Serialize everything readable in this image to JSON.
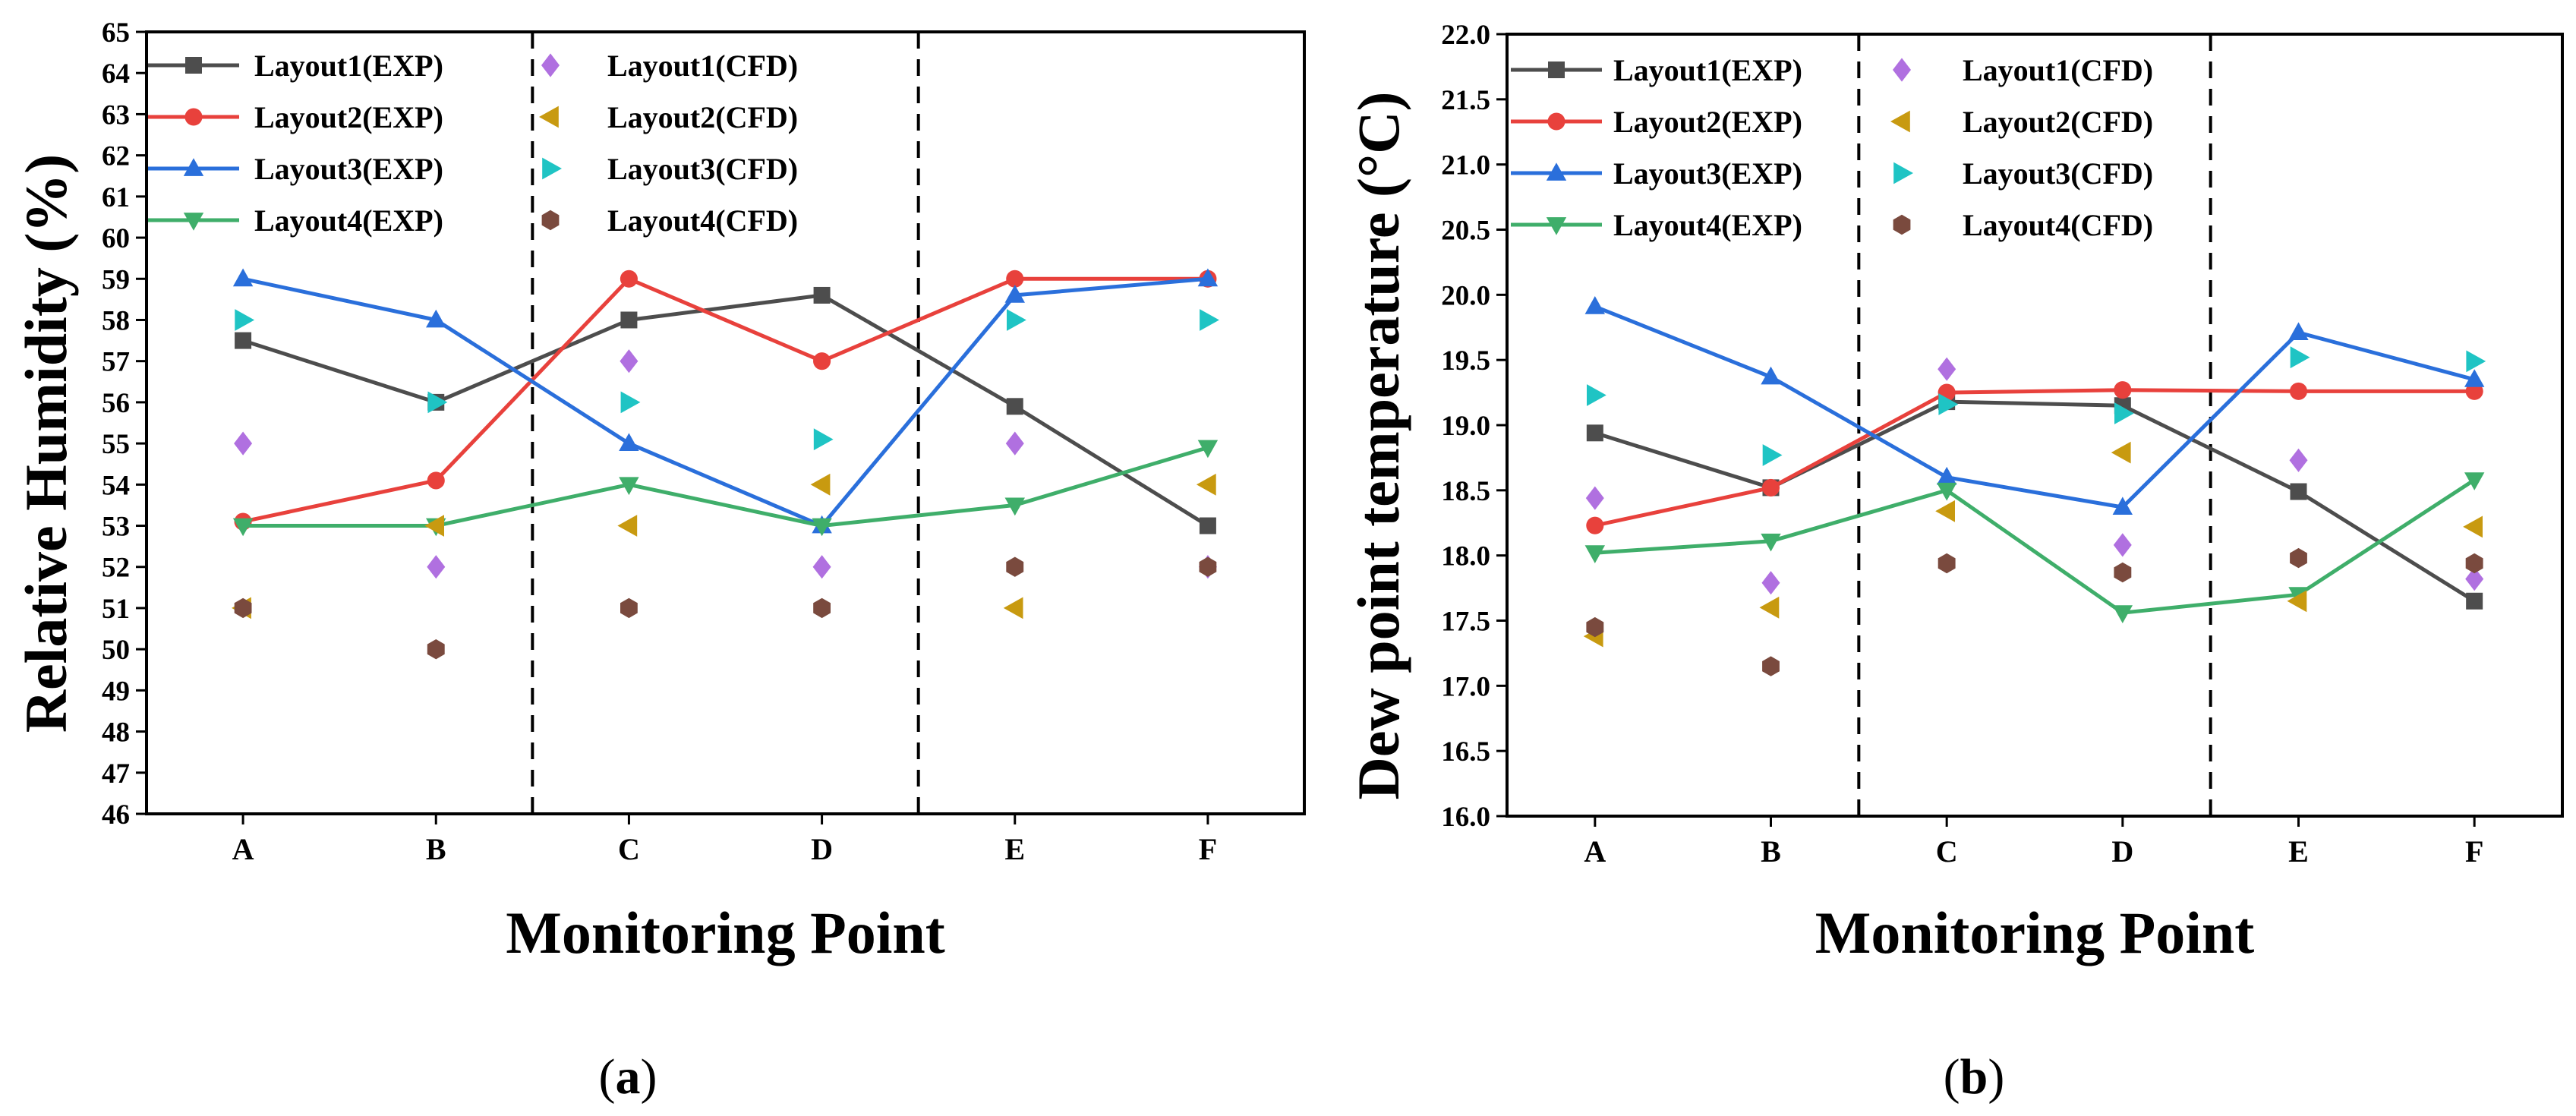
{
  "chart_data": [
    {
      "type": "line",
      "title": "",
      "xlabel": "Monitoring Point",
      "ylabel": "Relative Humidity (%)",
      "categories": [
        "A",
        "B",
        "C",
        "D",
        "E",
        "F"
      ],
      "ylim": [
        46,
        65
      ],
      "yticks": [
        46,
        47,
        48,
        49,
        50,
        51,
        52,
        53,
        54,
        55,
        56,
        57,
        58,
        59,
        60,
        61,
        62,
        63,
        64,
        65
      ],
      "caption": {
        "open": "(",
        "letter": "a",
        "close": ")"
      },
      "series": [
        {
          "name": "Layout1(EXP)",
          "kind": "line",
          "marker": "square",
          "color": "#4d4d4d",
          "values": [
            57.5,
            56.0,
            58.0,
            58.6,
            55.9,
            53.0
          ]
        },
        {
          "name": "Layout2(EXP)",
          "kind": "line",
          "marker": "circle",
          "color": "#e8413c",
          "values": [
            53.1,
            54.1,
            59.0,
            57.0,
            59.0,
            59.0
          ]
        },
        {
          "name": "Layout3(EXP)",
          "kind": "line",
          "marker": "triangle-up",
          "color": "#2a6fdb",
          "values": [
            59.0,
            58.0,
            55.0,
            53.0,
            58.6,
            59.0
          ]
        },
        {
          "name": "Layout4(EXP)",
          "kind": "line",
          "marker": "triangle-down",
          "color": "#3fae6a",
          "values": [
            53.0,
            53.0,
            54.0,
            53.0,
            53.5,
            54.9
          ]
        },
        {
          "name": "Layout1(CFD)",
          "kind": "scatter",
          "marker": "diamond",
          "color": "#b070e0",
          "values": [
            55.0,
            52.0,
            57.0,
            52.0,
            55.0,
            52.0
          ]
        },
        {
          "name": "Layout2(CFD)",
          "kind": "scatter",
          "marker": "triangle-left",
          "color": "#c89a10",
          "values": [
            51.0,
            53.0,
            53.0,
            54.0,
            51.0,
            54.0
          ]
        },
        {
          "name": "Layout3(CFD)",
          "kind": "scatter",
          "marker": "triangle-right",
          "color": "#1fc4c4",
          "values": [
            58.0,
            56.0,
            56.0,
            55.1,
            58.0,
            58.0
          ]
        },
        {
          "name": "Layout4(CFD)",
          "kind": "scatter",
          "marker": "hexagon",
          "color": "#7a4a3e",
          "values": [
            51.0,
            50.0,
            51.0,
            51.0,
            52.0,
            52.0
          ]
        }
      ],
      "dividers_after_categories": [
        "B",
        "D"
      ]
    },
    {
      "type": "line",
      "title": "",
      "xlabel": "Monitoring Point",
      "ylabel": "Dew point temperature (°C)",
      "categories": [
        "A",
        "B",
        "C",
        "D",
        "E",
        "F"
      ],
      "ylim": [
        16.0,
        22.0
      ],
      "yticks": [
        "16.0",
        "16.5",
        "17.0",
        "17.5",
        "18.0",
        "18.5",
        "19.0",
        "19.5",
        "20.0",
        "20.5",
        "21.0",
        "21.5",
        "22.0"
      ],
      "caption": {
        "open": "(",
        "letter": "b",
        "close": ")"
      },
      "series": [
        {
          "name": "Layout1(EXP)",
          "kind": "line",
          "marker": "square",
          "color": "#4d4d4d",
          "values": [
            18.94,
            18.52,
            19.18,
            19.15,
            18.49,
            17.65
          ]
        },
        {
          "name": "Layout2(EXP)",
          "kind": "line",
          "marker": "circle",
          "color": "#e8413c",
          "values": [
            18.23,
            18.52,
            19.25,
            19.27,
            19.26,
            19.26
          ]
        },
        {
          "name": "Layout3(EXP)",
          "kind": "line",
          "marker": "triangle-up",
          "color": "#2a6fdb",
          "values": [
            19.91,
            19.37,
            18.6,
            18.37,
            19.71,
            19.35
          ]
        },
        {
          "name": "Layout4(EXP)",
          "kind": "line",
          "marker": "triangle-down",
          "color": "#3fae6a",
          "values": [
            18.02,
            18.11,
            18.5,
            17.56,
            17.7,
            18.58
          ]
        },
        {
          "name": "Layout1(CFD)",
          "kind": "scatter",
          "marker": "diamond",
          "color": "#b070e0",
          "values": [
            18.44,
            17.79,
            19.43,
            18.08,
            18.73,
            17.82
          ]
        },
        {
          "name": "Layout2(CFD)",
          "kind": "scatter",
          "marker": "triangle-left",
          "color": "#c89a10",
          "values": [
            17.38,
            17.6,
            18.34,
            18.79,
            17.65,
            18.22
          ]
        },
        {
          "name": "Layout3(CFD)",
          "kind": "scatter",
          "marker": "triangle-right",
          "color": "#1fc4c4",
          "values": [
            19.23,
            18.77,
            19.16,
            19.09,
            19.52,
            19.49
          ]
        },
        {
          "name": "Layout4(CFD)",
          "kind": "scatter",
          "marker": "hexagon",
          "color": "#7a4a3e",
          "values": [
            17.45,
            17.15,
            17.94,
            17.87,
            17.98,
            17.94
          ]
        }
      ],
      "dividers_after_categories": [
        "B",
        "D"
      ]
    }
  ]
}
